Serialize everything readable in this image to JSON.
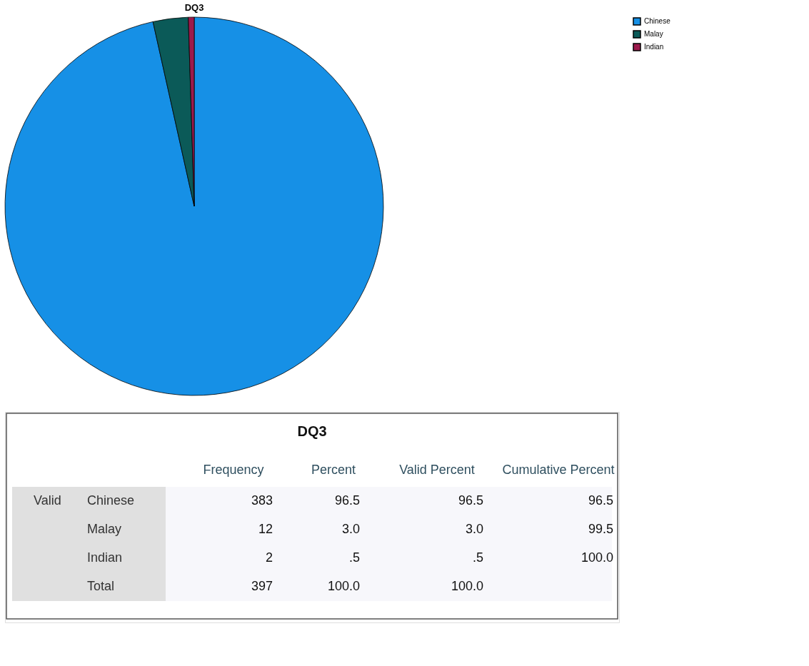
{
  "chart_data": {
    "type": "pie",
    "title": "DQ3",
    "subtitle": "DQ3",
    "categories": [
      "Chinese",
      "Malay",
      "Indian"
    ],
    "values": [
      96.5,
      3.0,
      0.5
    ],
    "colors": [
      "#1690e6",
      "#0b5a58",
      "#9c1a4c"
    ],
    "legend": "top right",
    "annotations": [
      "Frequency",
      "Percent",
      "Valid Percent",
      "Cumulative Percent",
      "Valid",
      "383",
      "96.5",
      "96.5",
      "96.5",
      "12",
      "3.0",
      "3.0",
      "99.5",
      "2",
      ".5",
      ".5",
      "100.0",
      "Total",
      "397",
      "100.0",
      "100.0"
    ]
  }
}
